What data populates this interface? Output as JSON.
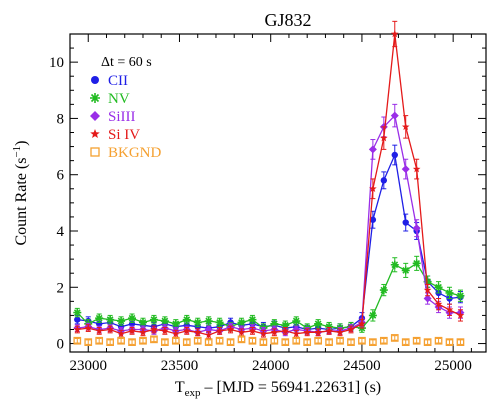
{
  "chart_data": {
    "type": "scatter",
    "title": "GJ832",
    "xlabel": {
      "main": "T",
      "sub": "exp",
      "rest": " – [MJD = 56941.22631] (s)"
    },
    "ylabel": {
      "main": "Count Rate (s",
      "sup": "−1",
      "end": ")"
    },
    "xlim": [
      22900,
      25180
    ],
    "ylim": [
      -0.3,
      11.0
    ],
    "xticks": [
      23000,
      23500,
      24000,
      24500,
      25000
    ],
    "yticks": [
      0,
      2,
      4,
      6,
      8,
      10
    ],
    "legend": {
      "placement": "top-left",
      "header": "Δt = 60 s"
    },
    "series": [
      {
        "name": "CII",
        "color": "#1f1fe6",
        "marker": "circle",
        "x": [
          22940,
          23000,
          23060,
          23120,
          23180,
          23240,
          23300,
          23360,
          23420,
          23480,
          23540,
          23600,
          23660,
          23720,
          23780,
          23840,
          23900,
          23960,
          24020,
          24080,
          24140,
          24200,
          24260,
          24320,
          24380,
          24440,
          24500,
          24560,
          24620,
          24680,
          24740,
          24800,
          24860,
          24920,
          24980,
          25040
        ],
        "y": [
          0.85,
          0.8,
          0.7,
          0.75,
          0.6,
          0.7,
          0.65,
          0.6,
          0.7,
          0.6,
          0.65,
          0.6,
          0.55,
          0.6,
          0.75,
          0.65,
          0.7,
          0.6,
          0.65,
          0.55,
          0.6,
          0.5,
          0.55,
          0.5,
          0.55,
          0.6,
          0.9,
          4.4,
          5.8,
          6.7,
          4.3,
          4.0,
          2.2,
          1.8,
          1.6,
          1.65
        ],
        "err": [
          0.15,
          0.15,
          0.15,
          0.15,
          0.15,
          0.15,
          0.15,
          0.15,
          0.15,
          0.15,
          0.15,
          0.15,
          0.15,
          0.15,
          0.15,
          0.15,
          0.15,
          0.15,
          0.15,
          0.15,
          0.15,
          0.15,
          0.15,
          0.15,
          0.15,
          0.15,
          0.2,
          0.3,
          0.3,
          0.35,
          0.3,
          0.3,
          0.2,
          0.2,
          0.2,
          0.2
        ]
      },
      {
        "name": "NV",
        "color": "#22bb22",
        "marker": "asterisk",
        "x": [
          22940,
          23000,
          23060,
          23120,
          23180,
          23240,
          23300,
          23360,
          23420,
          23480,
          23540,
          23600,
          23660,
          23720,
          23780,
          23840,
          23900,
          23960,
          24020,
          24080,
          24140,
          24200,
          24260,
          24320,
          24380,
          24440,
          24500,
          24560,
          24620,
          24680,
          24740,
          24800,
          24860,
          24920,
          24980,
          25040
        ],
        "y": [
          1.1,
          0.7,
          0.9,
          0.85,
          0.8,
          0.9,
          0.75,
          0.85,
          0.8,
          0.7,
          0.85,
          0.75,
          0.8,
          0.75,
          0.6,
          0.75,
          0.85,
          0.55,
          0.7,
          0.65,
          0.8,
          0.55,
          0.7,
          0.6,
          0.55,
          0.6,
          0.55,
          1.0,
          1.9,
          2.8,
          2.6,
          2.85,
          2.2,
          2.0,
          1.8,
          1.7
        ],
        "err": [
          0.15,
          0.15,
          0.15,
          0.15,
          0.15,
          0.15,
          0.15,
          0.15,
          0.15,
          0.15,
          0.15,
          0.15,
          0.15,
          0.15,
          0.15,
          0.15,
          0.15,
          0.15,
          0.15,
          0.15,
          0.15,
          0.15,
          0.15,
          0.15,
          0.15,
          0.15,
          0.15,
          0.2,
          0.2,
          0.25,
          0.25,
          0.25,
          0.2,
          0.2,
          0.2,
          0.2
        ]
      },
      {
        "name": "SiIII",
        "color": "#9a2ee8",
        "marker": "diamond",
        "x": [
          22940,
          23000,
          23060,
          23120,
          23180,
          23240,
          23300,
          23360,
          23420,
          23480,
          23540,
          23600,
          23660,
          23720,
          23780,
          23840,
          23900,
          23960,
          24020,
          24080,
          24140,
          24200,
          24260,
          24320,
          24380,
          24440,
          24500,
          24560,
          24620,
          24680,
          24740,
          24800,
          24860,
          24920,
          24980,
          25040
        ],
        "y": [
          0.55,
          0.6,
          0.5,
          0.55,
          0.45,
          0.5,
          0.5,
          0.45,
          0.55,
          0.45,
          0.5,
          0.4,
          0.5,
          0.45,
          0.6,
          0.5,
          0.55,
          0.45,
          0.5,
          0.4,
          0.5,
          0.45,
          0.4,
          0.45,
          0.45,
          0.55,
          0.75,
          6.9,
          7.7,
          8.1,
          6.2,
          4.1,
          1.6,
          1.3,
          1.1,
          1.1
        ],
        "err": [
          0.12,
          0.12,
          0.12,
          0.12,
          0.12,
          0.12,
          0.12,
          0.12,
          0.12,
          0.12,
          0.12,
          0.12,
          0.12,
          0.12,
          0.12,
          0.12,
          0.12,
          0.12,
          0.12,
          0.12,
          0.12,
          0.12,
          0.12,
          0.12,
          0.12,
          0.12,
          0.15,
          0.35,
          0.35,
          0.4,
          0.35,
          0.3,
          0.2,
          0.2,
          0.2,
          0.2
        ]
      },
      {
        "name": "Si IV",
        "color": "#e41a1a",
        "marker": "star",
        "x": [
          22940,
          23000,
          23060,
          23120,
          23180,
          23240,
          23300,
          23360,
          23420,
          23480,
          23540,
          23600,
          23660,
          23720,
          23780,
          23840,
          23900,
          23960,
          24020,
          24080,
          24140,
          24200,
          24260,
          24320,
          24380,
          24440,
          24500,
          24560,
          24620,
          24680,
          24740,
          24800,
          24860,
          24920,
          24980,
          25040
        ],
        "y": [
          0.5,
          0.55,
          0.45,
          0.5,
          0.35,
          0.45,
          0.4,
          0.5,
          0.45,
          0.35,
          0.45,
          0.4,
          0.3,
          0.45,
          0.5,
          0.4,
          0.45,
          0.35,
          0.4,
          0.45,
          0.35,
          0.4,
          0.4,
          0.45,
          0.4,
          0.5,
          0.7,
          5.5,
          7.3,
          11.0,
          7.7,
          6.2,
          1.9,
          1.4,
          1.2,
          1.0
        ],
        "err": [
          0.12,
          0.12,
          0.12,
          0.12,
          0.12,
          0.12,
          0.12,
          0.12,
          0.12,
          0.12,
          0.12,
          0.12,
          0.12,
          0.12,
          0.12,
          0.12,
          0.12,
          0.12,
          0.12,
          0.12,
          0.12,
          0.12,
          0.12,
          0.12,
          0.12,
          0.12,
          0.15,
          0.35,
          0.4,
          0.45,
          0.4,
          0.35,
          0.2,
          0.2,
          0.2,
          0.2
        ]
      },
      {
        "name": "BKGND",
        "color": "#f5a030",
        "marker": "square-open",
        "x": [
          22940,
          23000,
          23060,
          23120,
          23180,
          23240,
          23300,
          23360,
          23420,
          23480,
          23540,
          23600,
          23660,
          23720,
          23780,
          23840,
          23900,
          23960,
          24020,
          24080,
          24140,
          24200,
          24260,
          24320,
          24380,
          24440,
          24500,
          24560,
          24620,
          24680,
          24740,
          24800,
          24860,
          24920,
          24980,
          25040
        ],
        "y": [
          0.1,
          0.05,
          0.1,
          0.05,
          0.1,
          0.05,
          0.1,
          0.15,
          0.05,
          0.1,
          0.05,
          0.1,
          0.05,
          0.1,
          0.05,
          0.15,
          0.1,
          0.05,
          0.1,
          0.05,
          0.1,
          0.05,
          0.1,
          0.05,
          0.1,
          0.05,
          0.1,
          0.05,
          0.1,
          0.2,
          0.05,
          0.1,
          0.05,
          0.1,
          0.05,
          0.05
        ],
        "err": [
          0.08,
          0.08,
          0.08,
          0.08,
          0.08,
          0.08,
          0.08,
          0.08,
          0.08,
          0.08,
          0.08,
          0.08,
          0.08,
          0.08,
          0.08,
          0.08,
          0.08,
          0.08,
          0.08,
          0.08,
          0.08,
          0.08,
          0.08,
          0.08,
          0.08,
          0.08,
          0.08,
          0.08,
          0.08,
          0.08,
          0.08,
          0.08,
          0.08,
          0.08,
          0.08,
          0.08
        ]
      }
    ],
    "grid": false
  }
}
